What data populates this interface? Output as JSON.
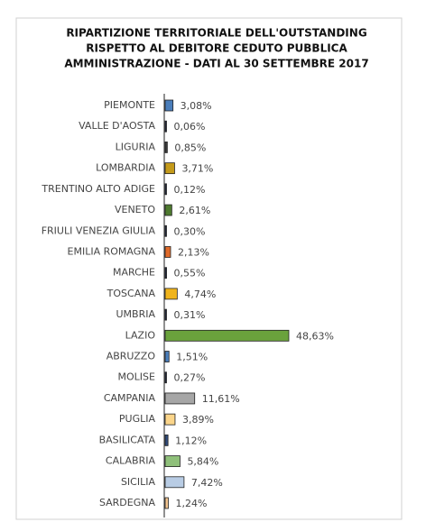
{
  "chart_data": {
    "type": "bar",
    "orientation": "horizontal",
    "title": [
      "RIPARTIZIONE TERRITORIALE DELL'OUTSTANDING",
      "RISPETTO AL DEBITORE CEDUTO PUBBLICA",
      "AMMINISTRAZIONE - DATI AL 30 SETTEMBRE 2017"
    ],
    "categories": [
      "PIEMONTE",
      "VALLE D'AOSTA",
      "LIGURIA",
      "LOMBARDIA",
      "TRENTINO ALTO ADIGE",
      "VENETO",
      "FRIULI VENEZIA GIULIA",
      "EMILIA ROMAGNA",
      "MARCHE",
      "TOSCANA",
      "UMBRIA",
      "LAZIO",
      "ABRUZZO",
      "MOLISE",
      "CAMPANIA",
      "PUGLIA",
      "BASILICATA",
      "CALABRIA",
      "SICILIA",
      "SARDEGNA"
    ],
    "values": [
      3.08,
      0.06,
      0.85,
      3.71,
      0.12,
      2.61,
      0.3,
      2.13,
      0.55,
      4.74,
      0.31,
      48.63,
      1.51,
      0.27,
      11.61,
      3.89,
      1.12,
      5.84,
      7.42,
      1.24
    ],
    "value_labels": [
      "3,08%",
      "0,06%",
      "0,85%",
      "3,71%",
      "0,12%",
      "2,61%",
      "0,30%",
      "2,13%",
      "0,55%",
      "4,74%",
      "0,31%",
      "48,63%",
      "1,51%",
      "0,27%",
      "11,61%",
      "3,89%",
      "1,12%",
      "5,84%",
      "7,42%",
      "1,24%"
    ],
    "colors": [
      "#4a7ebb",
      "#1f2a44",
      "#3a3a3a",
      "#c49a1a",
      "#1f2a44",
      "#4e7a2f",
      "#1f2a44",
      "#e06a2a",
      "#1f2a44",
      "#f0b41c",
      "#1f2a44",
      "#6aa23c",
      "#4a7ebb",
      "#1f2a44",
      "#a6a6a6",
      "#fbd58a",
      "#2f4b7c",
      "#8fc07a",
      "#b8cce4",
      "#f2c48f"
    ]
  }
}
